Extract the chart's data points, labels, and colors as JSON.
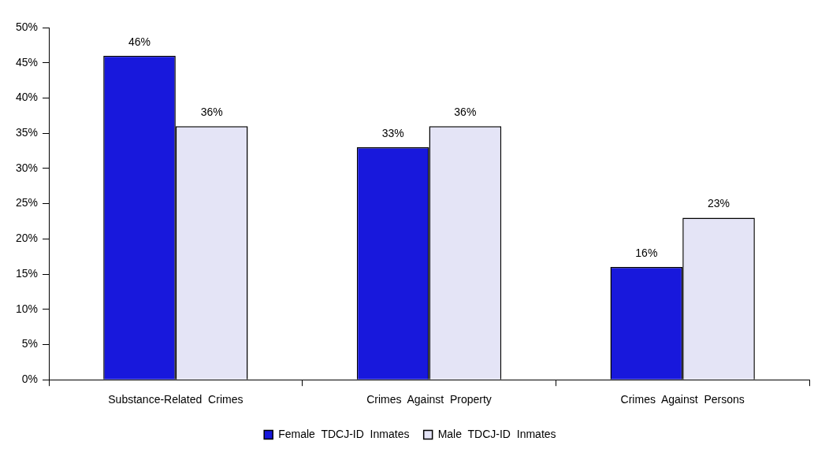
{
  "chart_data": {
    "type": "bar",
    "categories": [
      "Substance-Related  Crimes",
      "Crimes  Against  Property",
      "Crimes  Against  Persons"
    ],
    "series": [
      {
        "name": "Female  TDCJ-ID  Inmates",
        "color": "#1818dc",
        "values": [
          46,
          33,
          16
        ],
        "value_labels": [
          "46%",
          "33%",
          "16%"
        ]
      },
      {
        "name": "Male  TDCJ-ID  Inmates",
        "color": "#e4e4f6",
        "values": [
          36,
          36,
          23
        ],
        "value_labels": [
          "36%",
          "36%",
          "23%"
        ]
      }
    ],
    "ylim": [
      0,
      50
    ],
    "yticks": [
      {
        "value": 0,
        "label": "0%"
      },
      {
        "value": 5,
        "label": "5%"
      },
      {
        "value": 10,
        "label": "10%"
      },
      {
        "value": 15,
        "label": "15%"
      },
      {
        "value": 20,
        "label": "20%"
      },
      {
        "value": 25,
        "label": "25%"
      },
      {
        "value": 30,
        "label": "30%"
      },
      {
        "value": 35,
        "label": "35%"
      },
      {
        "value": 40,
        "label": "40%"
      },
      {
        "value": 45,
        "label": "45%"
      },
      {
        "value": 50,
        "label": "50%"
      }
    ],
    "grid": false,
    "legend": "bottom"
  }
}
